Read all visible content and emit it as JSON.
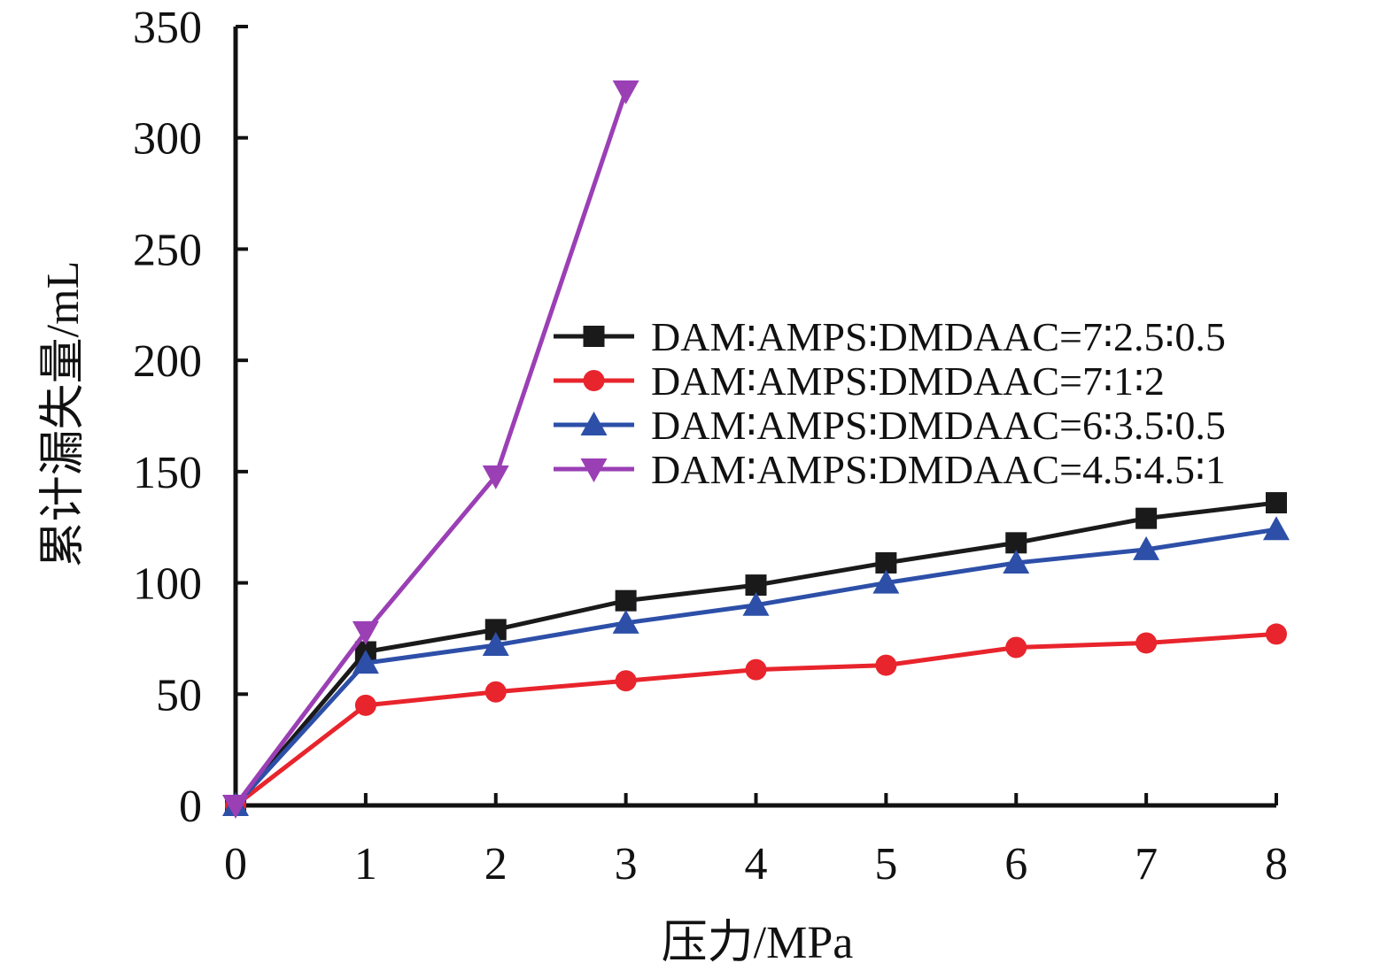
{
  "chart_data": {
    "type": "line",
    "xlabel": "压力/MPa",
    "ylabel": "累计漏失量/mL",
    "xlim": [
      0,
      8
    ],
    "ylim": [
      0,
      350
    ],
    "xticks": [
      "0",
      "1",
      "2",
      "3",
      "4",
      "5",
      "6",
      "7",
      "8"
    ],
    "yticks": [
      "0",
      "50",
      "100",
      "150",
      "200",
      "250",
      "300",
      "350"
    ],
    "grid": false,
    "legend_position": "right",
    "series": [
      {
        "name": "DAM∶AMPS∶DMDAAC=7∶2.5∶0.5",
        "color": "#1a1a1a",
        "marker": "square",
        "x": [
          0,
          1,
          2,
          3,
          4,
          5,
          6,
          7,
          8
        ],
        "y": [
          0,
          69,
          79,
          92,
          99,
          109,
          118,
          129,
          136
        ]
      },
      {
        "name": "DAM∶AMPS∶DMDAAC=7∶1∶2",
        "color": "#e8242c",
        "marker": "circle",
        "x": [
          0,
          1,
          2,
          3,
          4,
          5,
          6,
          7,
          8
        ],
        "y": [
          0,
          45,
          51,
          56,
          61,
          63,
          71,
          73,
          77
        ]
      },
      {
        "name": "DAM∶AMPS∶DMDAAC=6∶3.5∶0.5",
        "color": "#2d4fa8",
        "marker": "triangle-up",
        "x": [
          0,
          1,
          2,
          3,
          4,
          5,
          6,
          7,
          8
        ],
        "y": [
          0,
          64,
          72,
          82,
          90,
          100,
          109,
          115,
          124
        ]
      },
      {
        "name": "DAM∶AMPS∶DMDAAC=4.5∶4.5∶1",
        "color": "#9b3fb5",
        "marker": "triangle-down",
        "x": [
          0,
          1,
          2,
          3
        ],
        "y": [
          0,
          78,
          148,
          321
        ]
      }
    ]
  }
}
